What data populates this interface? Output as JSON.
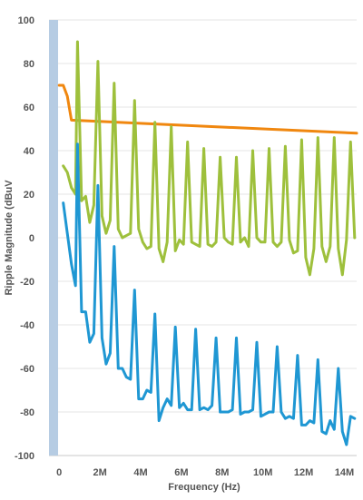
{
  "chart_data": {
    "type": "line",
    "title": "",
    "xlabel": "Frequency (Hz)",
    "ylabel": "Ripple Magnitude (dBuV",
    "xlim": [
      -0.5,
      14.6
    ],
    "ylim": [
      -100,
      100
    ],
    "x_ticks": [
      {
        "value": 0,
        "label": "0"
      },
      {
        "value": 2,
        "label": "2M"
      },
      {
        "value": 4,
        "label": "4M"
      },
      {
        "value": 6,
        "label": "6M"
      },
      {
        "value": 8,
        "label": "8M"
      },
      {
        "value": 10,
        "label": "10M"
      },
      {
        "value": 12,
        "label": "12M"
      },
      {
        "value": 14,
        "label": "14M"
      }
    ],
    "y_ticks": [
      {
        "value": 100,
        "label": "100"
      },
      {
        "value": 80,
        "label": "80"
      },
      {
        "value": 60,
        "label": "60"
      },
      {
        "value": 40,
        "label": "40"
      },
      {
        "value": 20,
        "label": "20"
      },
      {
        "value": 0,
        "label": "0"
      },
      {
        "value": -20,
        "label": "-20"
      },
      {
        "value": -40,
        "label": "-40"
      },
      {
        "value": -60,
        "label": "-60"
      },
      {
        "value": -80,
        "label": "-80"
      },
      {
        "value": -100,
        "label": "-100"
      }
    ],
    "grid": true,
    "series": [
      {
        "color": "#f0870f",
        "x": [
          0,
          0.2,
          0.4,
          0.6,
          14.6
        ],
        "y": [
          70,
          70,
          65,
          54,
          48
        ]
      },
      {
        "color": "#9ec03c",
        "x": [
          0.2,
          0.4,
          0.6,
          0.8,
          0.9,
          1.1,
          1.3,
          1.5,
          1.7,
          1.9,
          2.1,
          2.3,
          2.5,
          2.7,
          2.9,
          3.1,
          3.3,
          3.5,
          3.7,
          3.9,
          4.1,
          4.3,
          4.5,
          4.7,
          4.9,
          5.1,
          5.3,
          5.5,
          5.7,
          5.9,
          6.1,
          6.3,
          6.5,
          6.7,
          6.9,
          7.1,
          7.3,
          7.5,
          7.7,
          7.9,
          8.1,
          8.3,
          8.5,
          8.7,
          8.9,
          9.1,
          9.3,
          9.5,
          9.7,
          9.9,
          10.1,
          10.3,
          10.5,
          10.7,
          10.9,
          11.1,
          11.3,
          11.5,
          11.7,
          11.9,
          12.1,
          12.3,
          12.5,
          12.7,
          12.9,
          13.1,
          13.3,
          13.5,
          13.7,
          13.9,
          14.1,
          14.3,
          14.5
        ],
        "y": [
          33,
          30,
          23,
          20,
          90,
          17,
          19,
          7,
          15,
          81,
          10,
          2,
          8,
          71,
          4,
          0,
          1,
          2,
          63,
          4,
          -2,
          -5,
          -4,
          53,
          -5,
          -11,
          -2,
          51,
          -6,
          -1,
          -3,
          44,
          -2,
          -3,
          -4,
          41,
          -3,
          -4,
          -2,
          37,
          0,
          -2,
          -3,
          37,
          -2,
          0,
          -4,
          40,
          0,
          -2,
          -2,
          41,
          -2,
          -4,
          -2,
          42,
          -1,
          -7,
          -6,
          45,
          -9,
          -17,
          -5,
          46,
          -4,
          -11,
          -4,
          46,
          -5,
          -17,
          -1,
          44,
          0
        ]
      },
      {
        "color": "#1f97d3",
        "x": [
          0.2,
          0.4,
          0.6,
          0.8,
          0.9,
          1.1,
          1.3,
          1.5,
          1.7,
          1.9,
          2.1,
          2.3,
          2.5,
          2.7,
          2.9,
          3.1,
          3.3,
          3.5,
          3.7,
          3.9,
          4.1,
          4.3,
          4.5,
          4.7,
          4.9,
          5.1,
          5.3,
          5.5,
          5.7,
          5.9,
          6.1,
          6.3,
          6.5,
          6.7,
          6.9,
          7.1,
          7.3,
          7.5,
          7.7,
          7.9,
          8.1,
          8.3,
          8.5,
          8.7,
          8.9,
          9.1,
          9.3,
          9.5,
          9.7,
          9.9,
          10.1,
          10.3,
          10.5,
          10.7,
          10.9,
          11.1,
          11.3,
          11.5,
          11.7,
          11.9,
          12.1,
          12.3,
          12.5,
          12.7,
          12.9,
          13.1,
          13.3,
          13.5,
          13.7,
          13.9,
          14.1,
          14.3,
          14.5
        ],
        "y": [
          16,
          2,
          -12,
          -22,
          43,
          -34,
          -34,
          -48,
          -44,
          24,
          -46,
          -58,
          -53,
          -4,
          -60,
          -60,
          -64,
          -65,
          -24,
          -74,
          -74,
          -70,
          -71,
          -35,
          -84,
          -78,
          -74,
          -77,
          -41,
          -78,
          -76,
          -79,
          -79,
          -42,
          -79,
          -78,
          -79,
          -77,
          -46,
          -80,
          -80,
          -80,
          -79,
          -46,
          -81,
          -80,
          -80,
          -79,
          -48,
          -82,
          -81,
          -80,
          -80,
          -50,
          -80,
          -83,
          -82,
          -83,
          -54,
          -86,
          -86,
          -84,
          -85,
          -56,
          -89,
          -90,
          -84,
          -88,
          -60,
          -89,
          -95,
          -82,
          -83
        ]
      }
    ]
  }
}
